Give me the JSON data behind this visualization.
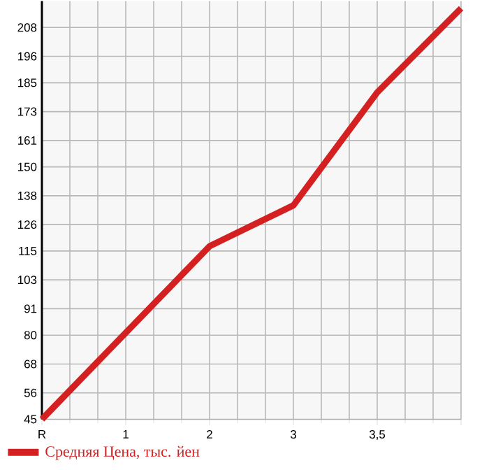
{
  "chart_data": {
    "type": "line",
    "categories": [
      "R",
      "1",
      "2",
      "3",
      "3,5",
      null
    ],
    "series": [
      {
        "name": "Средняя Цена, тыс. йен",
        "color": "#d42020",
        "values": [
          45,
          81,
          117,
          134,
          181,
          216
        ]
      }
    ],
    "ylim": [
      45,
      219
    ],
    "yticks": [
      45,
      56,
      68,
      80,
      91,
      103,
      115,
      126,
      138,
      150,
      161,
      173,
      185,
      196,
      208
    ],
    "grid": true,
    "legend": "bottom",
    "marker": "none",
    "line_style": "solid"
  }
}
